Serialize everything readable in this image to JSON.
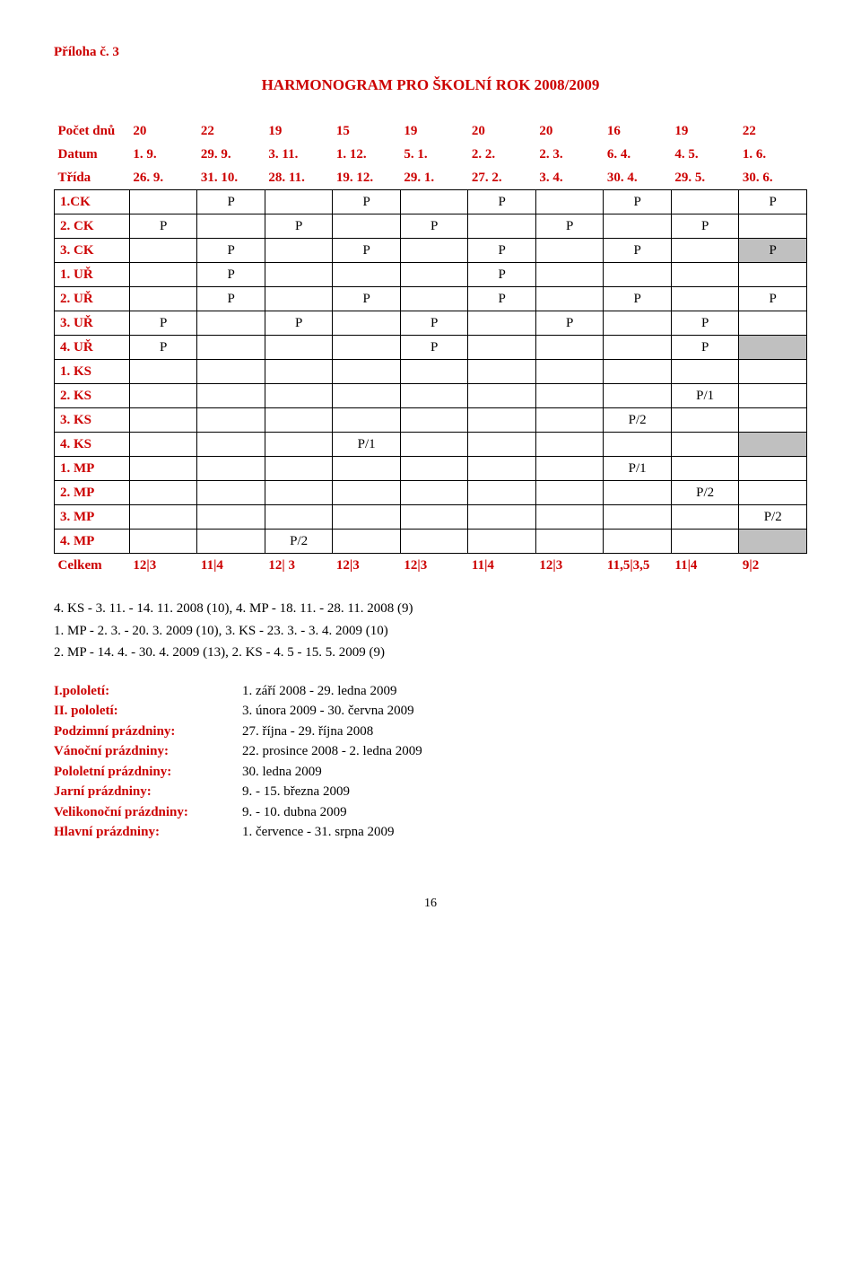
{
  "heading": "Příloha č. 3",
  "title": "HARMONOGRAM PRO ŠKOLNÍ ROK 2008/2009",
  "header_rows": [
    {
      "label": "Počet dnů",
      "cells": [
        "20",
        "22",
        "19",
        "15",
        "19",
        "20",
        "20",
        "16",
        "19",
        "22"
      ]
    },
    {
      "label": "Datum",
      "cells": [
        "1. 9.",
        "29. 9.",
        "3. 11.",
        "1. 12.",
        "5. 1.",
        "2. 2.",
        "2. 3.",
        "6. 4.",
        "4. 5.",
        "1. 6."
      ]
    },
    {
      "label": "Třída",
      "cells": [
        "26. 9.",
        "31. 10.",
        "28. 11.",
        "19. 12.",
        "29. 1.",
        "27. 2.",
        "3. 4.",
        "30. 4.",
        "29. 5.",
        "30. 6."
      ]
    }
  ],
  "body_rows": [
    {
      "label": "1.CK",
      "cells": [
        "",
        "P",
        "",
        "P",
        "",
        "P",
        "",
        "P",
        "",
        "P"
      ],
      "grey": []
    },
    {
      "label": "2. CK",
      "cells": [
        "P",
        "",
        "P",
        "",
        "P",
        "",
        "P",
        "",
        "P",
        ""
      ],
      "grey": []
    },
    {
      "label": "3. CK",
      "cells": [
        "",
        "P",
        "",
        "P",
        "",
        "P",
        "",
        "P",
        "",
        "P"
      ],
      "grey": [
        9
      ]
    },
    {
      "label": "1. UŘ",
      "cells": [
        "",
        "P",
        "",
        "",
        "",
        "P",
        "",
        "",
        "",
        ""
      ],
      "grey": []
    },
    {
      "label": "2. UŘ",
      "cells": [
        "",
        "P",
        "",
        "P",
        "",
        "P",
        "",
        "P",
        "",
        "P"
      ],
      "grey": []
    },
    {
      "label": "3. UŘ",
      "cells": [
        "P",
        "",
        "P",
        "",
        "P",
        "",
        "P",
        "",
        "P",
        ""
      ],
      "grey": []
    },
    {
      "label": "4. UŘ",
      "cells": [
        "P",
        "",
        "",
        "",
        "P",
        "",
        "",
        "",
        "P",
        ""
      ],
      "grey": [
        9
      ]
    },
    {
      "label": "1. KS",
      "cells": [
        "",
        "",
        "",
        "",
        "",
        "",
        "",
        "",
        "",
        ""
      ],
      "grey": []
    },
    {
      "label": "2. KS",
      "cells": [
        "",
        "",
        "",
        "",
        "",
        "",
        "",
        "",
        "P/1",
        ""
      ],
      "grey": []
    },
    {
      "label": "3. KS",
      "cells": [
        "",
        "",
        "",
        "",
        "",
        "",
        "",
        "P/2",
        "",
        ""
      ],
      "grey": []
    },
    {
      "label": "4. KS",
      "cells": [
        "",
        "",
        "",
        "P/1",
        "",
        "",
        "",
        "",
        "",
        ""
      ],
      "grey": [
        9
      ]
    },
    {
      "label": "1. MP",
      "cells": [
        "",
        "",
        "",
        "",
        "",
        "",
        "",
        "P/1",
        "",
        ""
      ],
      "grey": []
    },
    {
      "label": "2. MP",
      "cells": [
        "",
        "",
        "",
        "",
        "",
        "",
        "",
        "",
        "P/2",
        ""
      ],
      "grey": []
    },
    {
      "label": "3. MP",
      "cells": [
        "",
        "",
        "",
        "",
        "",
        "",
        "",
        "",
        "",
        "P/2"
      ],
      "grey": []
    },
    {
      "label": "4. MP",
      "cells": [
        "",
        "",
        "P/2",
        "",
        "",
        "",
        "",
        "",
        "",
        ""
      ],
      "grey": [
        9
      ]
    }
  ],
  "sum_row": {
    "label": "Celkem",
    "cells": [
      "12|3",
      "11|4",
      "12| 3",
      "12|3",
      "12|3",
      "11|4",
      "12|3",
      "11,5|3,5",
      "11|4",
      "9|2"
    ]
  },
  "note_lines": [
    "4. KS - 3. 11. - 14. 11. 2008 (10), 4. MP - 18. 11. - 28. 11. 2008 (9)",
    "1. MP - 2. 3. - 20. 3. 2009 (10), 3. KS - 23. 3. - 3. 4. 2009 (10)",
    "2. MP - 14. 4. - 30. 4. 2009 (13), 2. KS - 4. 5 - 15. 5. 2009 (9)"
  ],
  "calendar": [
    {
      "k": "I.pololetí:",
      "v": "1. září 2008 - 29. ledna 2009"
    },
    {
      "k": "II. pololetí:",
      "v": "3. února 2009 - 30. června 2009"
    },
    {
      "k": "Podzimní prázdniny:",
      "v": "27. října - 29. října 2008"
    },
    {
      "k": "Vánoční prázdniny:",
      "v": "22. prosince 2008 - 2. ledna 2009"
    },
    {
      "k": "Pololetní prázdniny:",
      "v": "30. ledna 2009"
    },
    {
      "k": "Jarní prázdniny:",
      "v": " 9. - 15. března 2009"
    },
    {
      "k": "Velikonoční prázdniny:",
      "v": " 9. - 10. dubna 2009"
    },
    {
      "k": "Hlavní prázdniny:",
      "v": " 1. července - 31. srpna 2009"
    }
  ],
  "page_number": "16",
  "colors": {
    "red": "#cc0000",
    "grey": "#c0c0c0",
    "border": "#000000",
    "bg": "#ffffff"
  }
}
